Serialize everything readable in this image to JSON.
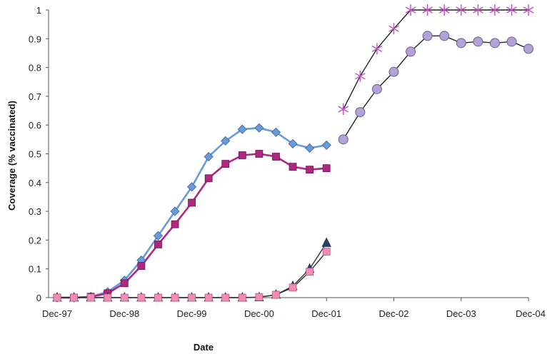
{
  "chart_data": {
    "type": "line",
    "title": "",
    "xlabel": "Date",
    "ylabel": "Coverage (% vaccinated)",
    "ylim": [
      0,
      1
    ],
    "yticks": [
      "0",
      "0.1",
      "0.2",
      "0.3",
      "0.4",
      "0.5",
      "0.6",
      "0.7",
      "0.8",
      "0.9",
      "1"
    ],
    "xticks": [
      "Dec-97",
      "Dec-98",
      "Dec-99",
      "Dec-00",
      "Dec-01",
      "Dec-02",
      "Dec-03",
      "Dec-04"
    ],
    "grid": false,
    "legend": "none",
    "x": [
      0,
      0.25,
      0.5,
      0.75,
      1,
      1.25,
      1.5,
      1.75,
      2,
      2.25,
      2.5,
      2.75,
      3,
      3.25,
      3.5,
      3.75,
      4,
      4.25,
      4.5,
      4.75,
      5,
      5.25,
      5.5,
      5.75,
      6,
      6.25,
      6.5,
      6.75,
      7
    ],
    "series": [
      {
        "marker": "diamond",
        "color": "#6a9bd8",
        "line_color": "#6a9bd8",
        "values": [
          0,
          0,
          0.003,
          0.02,
          0.06,
          0.13,
          0.215,
          0.3,
          0.385,
          0.49,
          0.545,
          0.585,
          0.59,
          0.575,
          0.535,
          0.52,
          0.53,
          null,
          null,
          null,
          null,
          null,
          null,
          null,
          null,
          null,
          null,
          null,
          null
        ]
      },
      {
        "marker": "square",
        "color": "#b0277f",
        "line_color": "#b0277f",
        "values": [
          0,
          0,
          0.003,
          0.015,
          0.05,
          0.11,
          0.185,
          0.255,
          0.33,
          0.415,
          0.465,
          0.495,
          0.5,
          0.49,
          0.455,
          0.445,
          0.45,
          null,
          null,
          null,
          null,
          null,
          null,
          null,
          null,
          null,
          null,
          null,
          null
        ]
      },
      {
        "marker": "triangle",
        "color": "#2a3f6e",
        "line_color": "#333333",
        "values": [
          0,
          0,
          0,
          0,
          0,
          0,
          0,
          0,
          0,
          0,
          0,
          0,
          0.001,
          0.01,
          0.04,
          0.1,
          0.19,
          null,
          null,
          null,
          null,
          null,
          null,
          null,
          null,
          null,
          null,
          null,
          null
        ]
      },
      {
        "marker": "square",
        "color": "#f08cb6",
        "line_color": "#333333",
        "values": [
          0,
          0,
          0,
          0,
          0,
          0,
          0,
          0,
          0,
          0,
          0,
          0,
          0.002,
          0.01,
          0.035,
          0.09,
          0.16,
          null,
          null,
          null,
          null,
          null,
          null,
          null,
          null,
          null,
          null,
          null,
          null
        ]
      },
      {
        "marker": "star",
        "color": "#c050c0",
        "line_color": "#222222",
        "values": [
          null,
          null,
          null,
          null,
          null,
          null,
          null,
          null,
          null,
          null,
          null,
          null,
          null,
          null,
          null,
          null,
          null,
          0.655,
          0.77,
          0.865,
          0.935,
          1,
          1,
          1,
          1,
          1,
          1,
          1,
          1
        ]
      },
      {
        "marker": "circle",
        "color": "#b3a2d6",
        "line_color": "#222222",
        "values": [
          null,
          null,
          null,
          null,
          null,
          null,
          null,
          null,
          null,
          null,
          null,
          null,
          null,
          null,
          null,
          null,
          null,
          0.55,
          0.645,
          0.725,
          0.785,
          0.855,
          0.91,
          0.91,
          0.885,
          0.89,
          0.885,
          0.89,
          0.865
        ]
      }
    ]
  }
}
